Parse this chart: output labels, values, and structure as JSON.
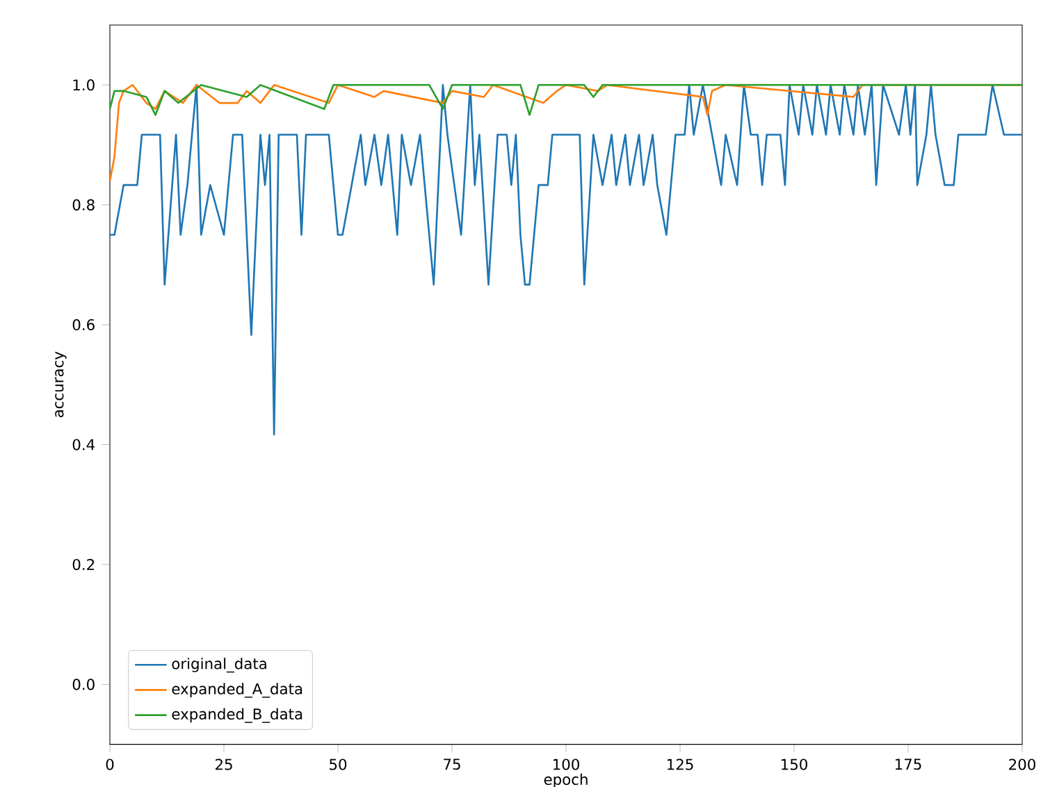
{
  "chart_data": {
    "type": "line",
    "xlabel": "epoch",
    "ylabel": "accuracy",
    "xlim": [
      0,
      200
    ],
    "ylim": [
      -0.1,
      1.1
    ],
    "xticks": [
      0,
      25,
      50,
      75,
      100,
      125,
      150,
      175,
      200
    ],
    "yticks": [
      {
        "value": 0,
        "label": "0.0"
      },
      {
        "value": 0.2,
        "label": "0.2"
      },
      {
        "value": 0.4,
        "label": "0.4"
      },
      {
        "value": 0.6,
        "label": "0.6"
      },
      {
        "value": 0.8,
        "label": "0.8"
      },
      {
        "value": 1,
        "label": "1.0"
      }
    ],
    "legend": "bottom left",
    "grid": false,
    "marker": "none",
    "line_style": "solid",
    "series": [
      {
        "name": "original_data",
        "color": "#1f77b4",
        "x": [
          0,
          1,
          3,
          6,
          7,
          11,
          12,
          14.5,
          15.5,
          17,
          18,
          19,
          20,
          22,
          25,
          27,
          29,
          31,
          33,
          34,
          35,
          36,
          37,
          41,
          42,
          43,
          48,
          50,
          51,
          53,
          55,
          56,
          58,
          59.5,
          61,
          63,
          64,
          66,
          68,
          71,
          73,
          74,
          77,
          79,
          80,
          81,
          83,
          85,
          87,
          88,
          89,
          90,
          91,
          92,
          94,
          96,
          97,
          103,
          104,
          106,
          108,
          110,
          111,
          113,
          114,
          116,
          117,
          119,
          120,
          122,
          124,
          126,
          127,
          128,
          130,
          132,
          134,
          135,
          137.5,
          139,
          140.5,
          142,
          143,
          144,
          147,
          148,
          149,
          151,
          152,
          154,
          155,
          157,
          158,
          160,
          161,
          163,
          164,
          165.5,
          167,
          168,
          169.5,
          173,
          174.5,
          175.5,
          176.5,
          177,
          179,
          180,
          181,
          183,
          185,
          186,
          192,
          193.5,
          196,
          200
        ],
        "values": [
          0.75,
          0.75,
          0.833,
          0.833,
          0.917,
          0.917,
          0.667,
          0.917,
          0.75,
          0.833,
          0.917,
          1.0,
          0.75,
          0.833,
          0.75,
          0.917,
          0.917,
          0.583,
          0.917,
          0.833,
          0.917,
          0.417,
          0.917,
          0.917,
          0.75,
          0.917,
          0.917,
          0.75,
          0.75,
          0.833,
          0.917,
          0.833,
          0.917,
          0.833,
          0.917,
          0.75,
          0.917,
          0.833,
          0.917,
          0.667,
          1.0,
          0.917,
          0.75,
          1.0,
          0.833,
          0.917,
          0.667,
          0.917,
          0.917,
          0.833,
          0.917,
          0.75,
          0.667,
          0.667,
          0.833,
          0.833,
          0.917,
          0.917,
          0.667,
          0.917,
          0.833,
          0.917,
          0.833,
          0.917,
          0.833,
          0.917,
          0.833,
          0.917,
          0.833,
          0.75,
          0.917,
          0.917,
          1.0,
          0.917,
          1.0,
          0.917,
          0.833,
          0.917,
          0.833,
          1.0,
          0.917,
          0.917,
          0.833,
          0.917,
          0.917,
          0.833,
          1.0,
          0.917,
          1.0,
          0.917,
          1.0,
          0.917,
          1.0,
          0.917,
          1.0,
          0.917,
          1.0,
          0.917,
          1.0,
          0.833,
          1.0,
          0.917,
          1.0,
          0.917,
          1.0,
          0.833,
          0.917,
          1.0,
          0.917,
          0.833,
          0.833,
          0.917,
          0.917,
          1.0,
          0.917,
          0.917
        ]
      },
      {
        "name": "expanded_A_data",
        "color": "#ff7f0e",
        "x": [
          0,
          1,
          2,
          3,
          5,
          8,
          10,
          12,
          16,
          19,
          24,
          28,
          30,
          33,
          36,
          48,
          50,
          58,
          60,
          73,
          75,
          82,
          84,
          95,
          98,
          100,
          107,
          109,
          130,
          131,
          132,
          135,
          163,
          165,
          200
        ],
        "values": [
          0.84,
          0.88,
          0.97,
          0.99,
          1.0,
          0.97,
          0.96,
          0.99,
          0.97,
          1.0,
          0.97,
          0.97,
          0.99,
          0.97,
          1.0,
          0.97,
          1.0,
          0.98,
          0.99,
          0.97,
          0.99,
          0.98,
          1.0,
          0.97,
          0.99,
          1.0,
          0.99,
          1.0,
          0.98,
          0.95,
          0.99,
          1.0,
          0.98,
          1.0,
          1.0
        ]
      },
      {
        "name": "expanded_B_data",
        "color": "#2ca02c",
        "x": [
          0,
          1,
          3,
          8,
          10,
          12,
          15,
          20,
          30,
          33,
          47,
          49,
          70,
          73,
          75,
          90,
          92,
          94,
          104,
          106,
          108,
          200
        ],
        "values": [
          0.96,
          0.99,
          0.99,
          0.98,
          0.95,
          0.99,
          0.97,
          1.0,
          0.98,
          1.0,
          0.96,
          1.0,
          1.0,
          0.96,
          1.0,
          1.0,
          0.95,
          1.0,
          1.0,
          0.98,
          1.0,
          1.0
        ]
      }
    ]
  }
}
